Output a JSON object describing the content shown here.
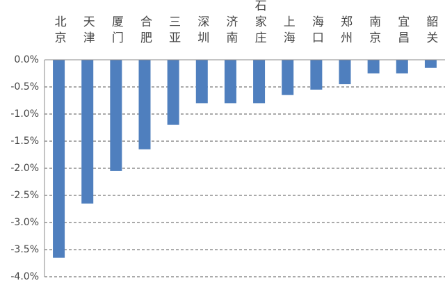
{
  "chart_data": {
    "type": "bar",
    "categories": [
      "北京",
      "天津",
      "厦门",
      "合肥",
      "三亚",
      "深圳",
      "济南",
      "石家庄",
      "上海",
      "海口",
      "郑州",
      "南京",
      "宜昌",
      "韶关"
    ],
    "values": [
      -3.65,
      -2.65,
      -2.05,
      -1.65,
      -1.2,
      -0.8,
      -0.8,
      -0.8,
      -0.65,
      -0.55,
      -0.45,
      -0.25,
      -0.25,
      -0.15
    ],
    "color": "#4f7fbe",
    "ylim": [
      -4.0,
      0.0
    ],
    "yticks": [
      {
        "value": 0.0,
        "label": "0.0%"
      },
      {
        "value": -0.5,
        "label": "-0.5%"
      },
      {
        "value": -1.0,
        "label": "-1.0%"
      },
      {
        "value": -1.5,
        "label": "-1.5%"
      },
      {
        "value": -2.0,
        "label": "-2.0%"
      },
      {
        "value": -2.5,
        "label": "-2.5%"
      },
      {
        "value": -3.0,
        "label": "-3.0%"
      },
      {
        "value": -3.5,
        "label": "-3.5%"
      },
      {
        "value": -4.0,
        "label": "-4.0%"
      }
    ],
    "grid": true
  }
}
